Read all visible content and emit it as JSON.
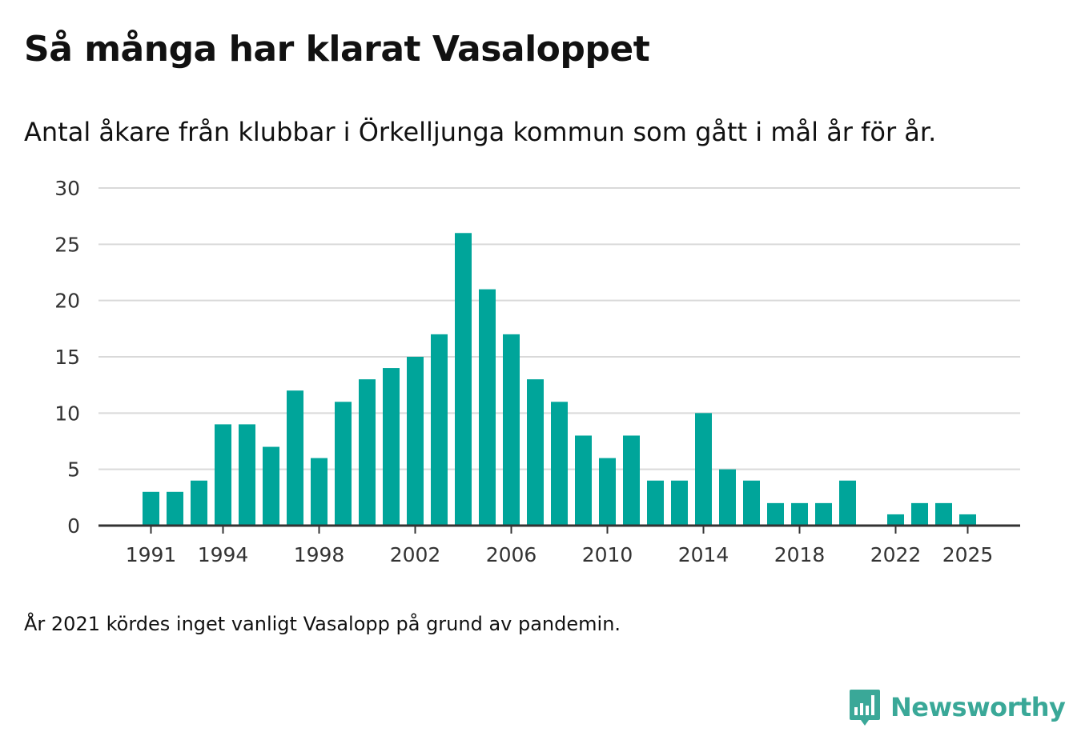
{
  "header": {
    "title": "Så många har klarat Vasaloppet",
    "subtitle": "Antal åkare från klubbar i Örkelljunga kommun som gått i mål år för år."
  },
  "footer": {
    "note": "År 2021 kördes inget vanligt Vasalopp på grund av pandemin."
  },
  "brand": {
    "name": "Newsworthy",
    "icon": "newsworthy-logo-icon",
    "color": "#3aa898"
  },
  "colors": {
    "bar": "#00a59a",
    "grid": "#d9d9d9",
    "axis": "#333333",
    "text": "#333333"
  },
  "chart_data": {
    "type": "bar",
    "title": "Så många har klarat Vasaloppet",
    "subtitle": "Antal åkare från klubbar i Örkelljunga kommun som gått i mål år för år.",
    "xlabel": "",
    "ylabel": "",
    "ylim": [
      0,
      30
    ],
    "yticks": [
      0,
      5,
      10,
      15,
      20,
      25,
      30
    ],
    "xticks": [
      1991,
      1994,
      1998,
      2002,
      2006,
      2010,
      2014,
      2018,
      2022,
      2025
    ],
    "xrange": [
      1989,
      2027
    ],
    "grid": true,
    "categories": [
      1991,
      1992,
      1993,
      1994,
      1995,
      1996,
      1997,
      1998,
      1999,
      2000,
      2001,
      2002,
      2003,
      2004,
      2005,
      2006,
      2007,
      2008,
      2009,
      2010,
      2011,
      2012,
      2013,
      2014,
      2015,
      2016,
      2017,
      2018,
      2019,
      2020,
      2021,
      2022,
      2023,
      2024,
      2025
    ],
    "values": [
      3,
      3,
      4,
      9,
      9,
      7,
      12,
      6,
      11,
      13,
      14,
      15,
      17,
      26,
      21,
      17,
      13,
      11,
      8,
      6,
      8,
      4,
      4,
      10,
      5,
      4,
      2,
      2,
      2,
      4,
      0,
      1,
      2,
      2,
      1
    ]
  }
}
